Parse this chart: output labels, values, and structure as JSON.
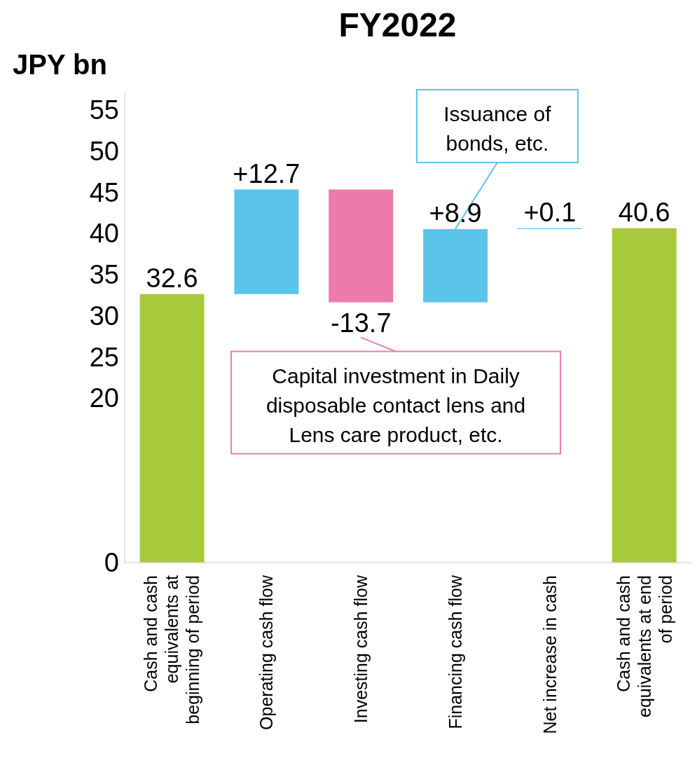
{
  "chart_data": {
    "type": "bar",
    "title": "FY2022",
    "ylabel": "JPY bn",
    "categories": [
      "Cash and cash equivalents at beginning of period",
      "Operating cash flow",
      "Investing cash flow",
      "Financing cash flow",
      "Net increase in cash",
      "Cash and cash equivalents at end of period"
    ],
    "values": [
      32.6,
      12.7,
      -13.7,
      8.9,
      0.1,
      40.6
    ],
    "base": [
      0,
      32.6,
      45.3,
      31.6,
      40.5,
      0
    ],
    "colors": [
      "#a6ca3c",
      "#5bc4ea",
      "#ec7bac",
      "#5bc4ea",
      "#5bc4ea",
      "#a6ca3c"
    ],
    "value_labels": [
      "32.6",
      "+12.7",
      "-13.7",
      "+8.9",
      "+0.1",
      "40.6"
    ],
    "ylim": [
      0,
      57
    ],
    "yticks": [
      0,
      20,
      25,
      30,
      35,
      40,
      45,
      50,
      55
    ],
    "grid": false,
    "legend": false,
    "annotations": [
      {
        "text": "Issuance of bonds, etc.",
        "x": "Financing cash flow",
        "y": 40.5
      },
      {
        "text": "Capital investment in Daily disposable contact lens and Lens care product, etc.",
        "x": "Investing cash flow",
        "y": 31.6
      }
    ]
  }
}
